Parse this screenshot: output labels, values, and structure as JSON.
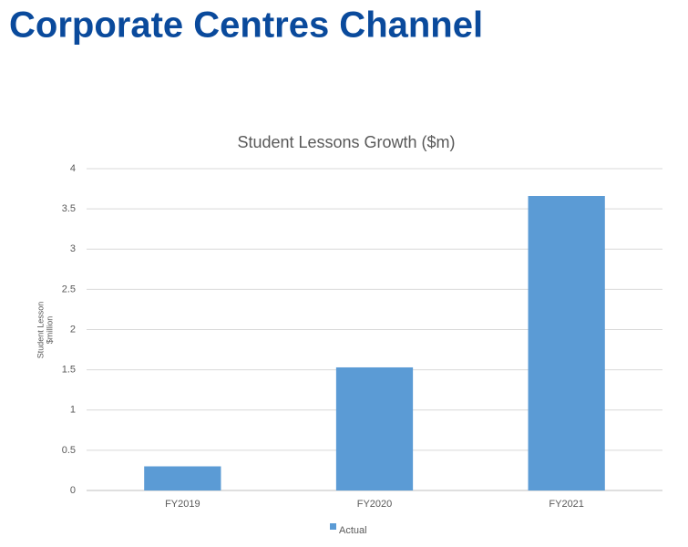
{
  "header": {
    "title": "Corporate Centres Channel"
  },
  "chart_data": {
    "type": "bar",
    "title": "Student Lessons Growth ($m)",
    "y_label": [
      "Student Lesson",
      "$million"
    ],
    "categories": [
      "FY2019",
      "FY2020",
      "FY2021"
    ],
    "series": [
      {
        "name": "Actual",
        "color": "#5b9bd5",
        "values": [
          0.3,
          1.53,
          3.66
        ]
      }
    ],
    "ylim": [
      0,
      4
    ],
    "yticks": [
      0,
      0.5,
      1,
      1.5,
      2,
      2.5,
      3,
      3.5,
      4
    ],
    "grid": true,
    "legend": "bottom"
  }
}
